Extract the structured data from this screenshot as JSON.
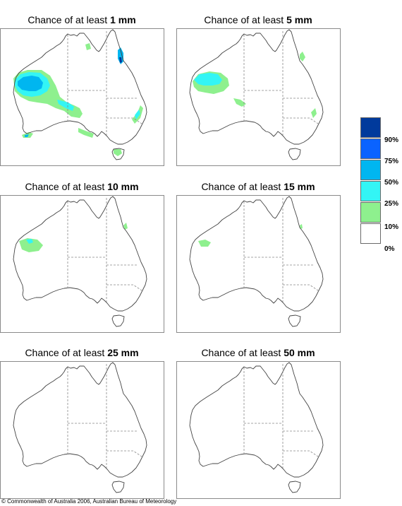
{
  "panels": [
    {
      "prefix": "Chance of at least ",
      "amount": "1 mm"
    },
    {
      "prefix": "Chance of at least ",
      "amount": "5 mm"
    },
    {
      "prefix": "Chance of at least ",
      "amount": "10 mm"
    },
    {
      "prefix": "Chance of at least ",
      "amount": "15 mm"
    },
    {
      "prefix": "Chance of at least ",
      "amount": "25 mm"
    },
    {
      "prefix": "Chance of at least ",
      "amount": "50 mm"
    }
  ],
  "legend": {
    "items": [
      {
        "color": "#003a9c",
        "label": "90%"
      },
      {
        "color": "#0a63ff",
        "label": "75%"
      },
      {
        "color": "#00b6f0",
        "label": "50%"
      },
      {
        "color": "#33f5f5",
        "label": "25%"
      },
      {
        "color": "#8ef08e",
        "label": "10%"
      },
      {
        "color": "#ffffff",
        "label": "0%"
      }
    ]
  },
  "copyright": "© Commonwealth of Australia 2006, Australian Bureau of Meteorology"
}
